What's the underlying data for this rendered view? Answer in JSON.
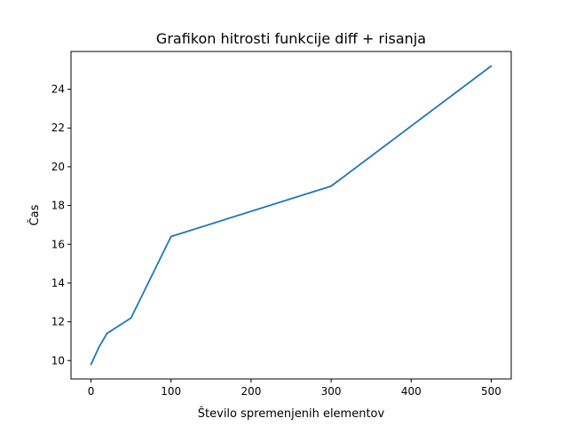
{
  "chart_data": {
    "type": "line",
    "title": "Grafikon hitrosti funkcije diff + risanja",
    "xlabel": "Število spremenjenih elementov",
    "ylabel": "Čas",
    "xlim": [
      -25,
      525
    ],
    "ylim": [
      9.05,
      25.95
    ],
    "xticks": [
      0,
      100,
      200,
      300,
      400,
      500
    ],
    "yticks": [
      10,
      12,
      14,
      16,
      18,
      20,
      22,
      24
    ],
    "grid": false,
    "series": [
      {
        "color": "#1f77b4",
        "x": [
          0,
          10,
          20,
          50,
          100,
          300,
          500
        ],
        "y": [
          9.8,
          10.7,
          11.4,
          12.2,
          16.4,
          19.0,
          25.2
        ]
      }
    ]
  }
}
